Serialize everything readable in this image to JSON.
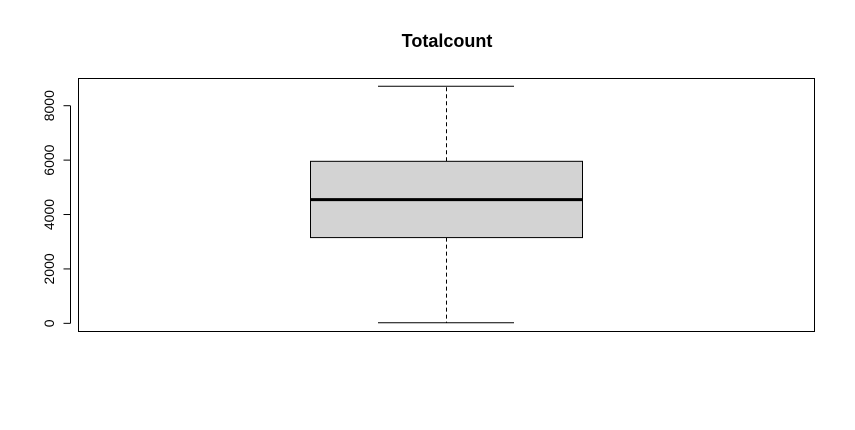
{
  "chart_data": {
    "type": "boxplot",
    "title": "Totalcount",
    "xlabel": "",
    "ylabel": "",
    "ylim": [
      -300,
      9000
    ],
    "y_ticks": [
      0,
      2000,
      4000,
      6000,
      8000
    ],
    "y_tick_labels": [
      "0",
      "2000",
      "4000",
      "6000",
      "8000"
    ],
    "series": [
      {
        "name": "Totalcount",
        "min": 22,
        "q1": 3152,
        "median": 4548,
        "q3": 5956,
        "max": 8714
      }
    ],
    "grid": false,
    "legend": "none"
  },
  "colors": {
    "box_fill": "#d3d3d3",
    "stroke": "#000000",
    "background": "#ffffff"
  }
}
